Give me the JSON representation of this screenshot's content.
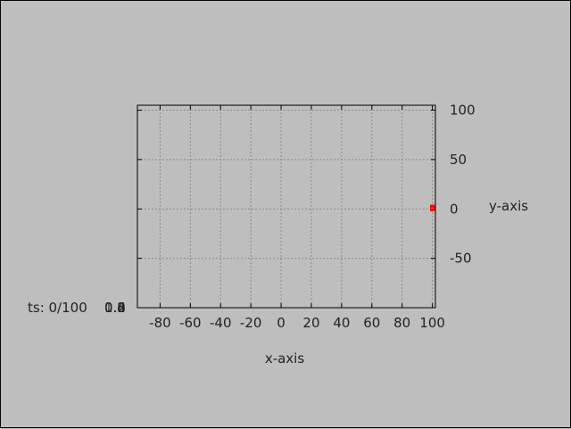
{
  "window": {
    "status": "ts: 0/100",
    "overlap_labels": [
      "0.2",
      "0.4",
      "0.6",
      "0.8",
      "1.0"
    ]
  },
  "chart_data": {
    "type": "scatter",
    "xlabel": "x-axis",
    "ylabel": "y-axis",
    "xlim": [
      -95,
      102
    ],
    "ylim": [
      -100,
      105
    ],
    "xticks": [
      -80,
      -60,
      -40,
      -20,
      0,
      20,
      40,
      60,
      80,
      100
    ],
    "yticks": [
      -50,
      0,
      50,
      100
    ],
    "grid": true,
    "series": [
      {
        "color": "#ff0000",
        "points": [
          [
            100,
            2
          ],
          [
            100,
            1
          ],
          [
            100,
            0
          ]
        ]
      }
    ]
  }
}
